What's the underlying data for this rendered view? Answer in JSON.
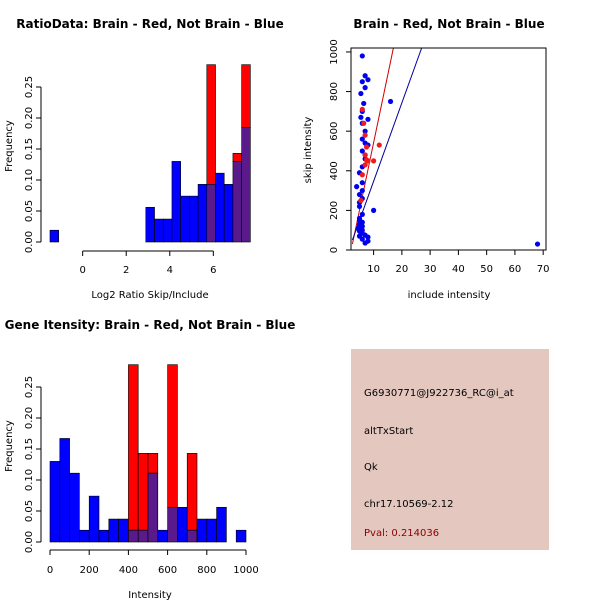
{
  "colors": {
    "red": "#ff0000",
    "blue": "#0000ff",
    "overlap": "#5a1a8c",
    "red_point": "#ee1c1c",
    "blue_point": "#0000ee",
    "info_bg": "#e4c8c0",
    "pval_text": "#8b0000",
    "line_red": "#cc0000",
    "line_blue": "#000099"
  },
  "info": {
    "probe": "G6930771@J922736_RC@i_at",
    "event": "altTxStart",
    "gene": "Qk",
    "location": "chr17.10569-2.12",
    "pval": "Pval: 0.214036"
  },
  "chart_data": [
    {
      "id": "ratio",
      "type": "bar",
      "title": "RatioData: Brain - Red, Not Brain - Blue",
      "xlabel": "Log2 Ratio Skip/Include",
      "ylabel": "Frequency",
      "xlim": [
        -1.5,
        7.5
      ],
      "ylim": [
        0,
        0.3
      ],
      "xticks": [
        0,
        2,
        4,
        6
      ],
      "xtick_labels": [
        "0",
        "2",
        "4",
        "6"
      ],
      "yticks": [
        0,
        0.05,
        0.1,
        0.15,
        0.2,
        0.25
      ],
      "ytick_labels": [
        "0.00",
        "0.05",
        "0.10",
        "0.15",
        "0.20",
        "0.25"
      ],
      "bin_start": -1.5,
      "bin_width": 0.4,
      "series": [
        {
          "name": "Brain",
          "color": "red",
          "values": [
            0,
            0,
            0,
            0,
            0,
            0,
            0,
            0,
            0,
            0,
            0,
            0,
            0,
            0,
            0,
            0,
            0,
            0,
            0.286,
            0,
            0,
            0.143,
            0.286
          ]
        },
        {
          "name": "Not Brain",
          "color": "blue",
          "values": [
            0.019,
            0,
            0,
            0,
            0,
            0,
            0,
            0,
            0,
            0,
            0,
            0.056,
            0.037,
            0.037,
            0.13,
            0.074,
            0.074,
            0.093,
            0.093,
            0.111,
            0.093,
            0.13,
            0.185
          ]
        }
      ]
    },
    {
      "id": "scatter",
      "type": "scatter",
      "title": "Brain - Red, Not Brain - Blue",
      "xlabel": "include intensity",
      "ylabel": "skip intensity",
      "xlim": [
        2,
        71
      ],
      "ylim": [
        0,
        1020
      ],
      "xticks": [
        10,
        20,
        30,
        40,
        50,
        60,
        70
      ],
      "xtick_labels": [
        "10",
        "20",
        "30",
        "40",
        "50",
        "60",
        "70"
      ],
      "yticks": [
        0,
        200,
        400,
        600,
        800,
        1000
      ],
      "ytick_labels": [
        "0",
        "200",
        "400",
        "600",
        "800",
        "1000"
      ],
      "lines": [
        {
          "name": "Brain fit",
          "color": "line_red",
          "x1": 2.5,
          "y1": 30,
          "x2": 17,
          "y2": 1020
        },
        {
          "name": "Not Brain fit",
          "color": "line_blue",
          "x1": 2.5,
          "y1": 50,
          "x2": 27,
          "y2": 1020
        }
      ],
      "series": [
        {
          "name": "Brain",
          "color": "red_point",
          "points": [
            [
              6,
              710
            ],
            [
              6.5,
              640
            ],
            [
              7,
              580
            ],
            [
              7.5,
              520
            ],
            [
              7,
              480
            ],
            [
              7.5,
              455
            ],
            [
              7,
              430
            ],
            [
              8,
              450
            ],
            [
              12,
              530
            ],
            [
              10,
              450
            ],
            [
              5.5,
              250
            ],
            [
              6,
              380
            ]
          ]
        },
        {
          "name": "Not Brain",
          "color": "blue_point",
          "points": [
            [
              6,
              980
            ],
            [
              7,
              880
            ],
            [
              8,
              860
            ],
            [
              6,
              850
            ],
            [
              7,
              820
            ],
            [
              5.5,
              790
            ],
            [
              6.5,
              740
            ],
            [
              6,
              700
            ],
            [
              5.5,
              670
            ],
            [
              8,
              660
            ],
            [
              6,
              640
            ],
            [
              7,
              600
            ],
            [
              6,
              560
            ],
            [
              7,
              540
            ],
            [
              8,
              530
            ],
            [
              6,
              500
            ],
            [
              7,
              480
            ],
            [
              7,
              460
            ],
            [
              6,
              420
            ],
            [
              5,
              390
            ],
            [
              6,
              340
            ],
            [
              4,
              320
            ],
            [
              6,
              300
            ],
            [
              5,
              280
            ],
            [
              6,
              260
            ],
            [
              5,
              240
            ],
            [
              5,
              220
            ],
            [
              10,
              200
            ],
            [
              6,
              180
            ],
            [
              5,
              160
            ],
            [
              5,
              150
            ],
            [
              6,
              140
            ],
            [
              5,
              130
            ],
            [
              6,
              120
            ],
            [
              4.5,
              110
            ],
            [
              6,
              100
            ],
            [
              5,
              95
            ],
            [
              6,
              85
            ],
            [
              7,
              75
            ],
            [
              5,
              70
            ],
            [
              8,
              65
            ],
            [
              6,
              55
            ],
            [
              8,
              45
            ],
            [
              7,
              35
            ],
            [
              16,
              750
            ],
            [
              68,
              30
            ]
          ]
        }
      ]
    },
    {
      "id": "gene",
      "type": "bar",
      "title": "Gene Itensity: Brain - Red, Not Brain - Blue",
      "xlabel": "Intensity",
      "ylabel": "Frequency",
      "xlim": [
        0,
        1000
      ],
      "ylim": [
        0,
        0.3
      ],
      "xticks": [
        0,
        200,
        400,
        600,
        800,
        1000
      ],
      "xtick_labels": [
        "0",
        "200",
        "400",
        "600",
        "800",
        "1000"
      ],
      "yticks": [
        0,
        0.05,
        0.1,
        0.15,
        0.2,
        0.25
      ],
      "ytick_labels": [
        "0.00",
        "0.05",
        "0.10",
        "0.15",
        "0.20",
        "0.25"
      ],
      "bin_start": 0,
      "bin_width": 50,
      "series": [
        {
          "name": "Brain",
          "color": "red",
          "values": [
            0,
            0,
            0,
            0,
            0,
            0,
            0,
            0,
            0.286,
            0.143,
            0.143,
            0,
            0.286,
            0,
            0.143,
            0,
            0,
            0,
            0,
            0
          ]
        },
        {
          "name": "Not Brain",
          "color": "blue",
          "values": [
            0.13,
            0.167,
            0.111,
            0.019,
            0.074,
            0.019,
            0.037,
            0.037,
            0.019,
            0.019,
            0.111,
            0.019,
            0.056,
            0.056,
            0.019,
            0.037,
            0.037,
            0.056,
            0,
            0.019
          ]
        }
      ]
    }
  ]
}
